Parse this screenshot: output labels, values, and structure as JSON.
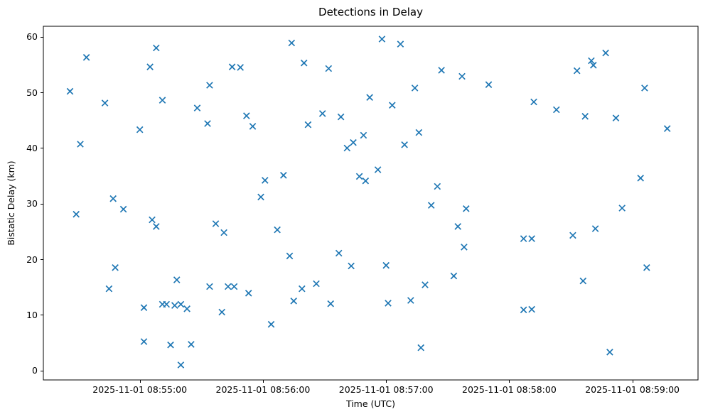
{
  "chart_data": {
    "type": "scatter",
    "title": "Detections in Delay",
    "xlabel": "Time (UTC)",
    "ylabel": "Bistatic Delay (km)",
    "marker": "x",
    "marker_color": "#1f77b4",
    "spine_color": "#000000",
    "background_color": "#ffffff",
    "grid": false,
    "legend": false,
    "xlim": [
      "2025-11-01 08:54:13",
      "2025-11-01 08:59:32"
    ],
    "ylim": [
      -1.7,
      61.9
    ],
    "xtick_labels": [
      "2025-11-01 08:55:00",
      "2025-11-01 08:56:00",
      "2025-11-01 08:57:00",
      "2025-11-01 08:58:00",
      "2025-11-01 08:59:00"
    ],
    "ytick_values": [
      0,
      10,
      20,
      30,
      40,
      50,
      60
    ],
    "points": [
      [
        "2025-11-01 08:54:26",
        50.2
      ],
      [
        "2025-11-01 08:54:29",
        28.1
      ],
      [
        "2025-11-01 08:54:31",
        40.7
      ],
      [
        "2025-11-01 08:54:34",
        56.3
      ],
      [
        "2025-11-01 08:54:43",
        48.1
      ],
      [
        "2025-11-01 08:54:45",
        14.7
      ],
      [
        "2025-11-01 08:54:47",
        30.9
      ],
      [
        "2025-11-01 08:54:48",
        18.5
      ],
      [
        "2025-11-01 08:54:52",
        29.0
      ],
      [
        "2025-11-01 08:55:00",
        43.3
      ],
      [
        "2025-11-01 08:55:02",
        11.3
      ],
      [
        "2025-11-01 08:55:02",
        5.2
      ],
      [
        "2025-11-01 08:55:05",
        54.6
      ],
      [
        "2025-11-01 08:55:06",
        27.1
      ],
      [
        "2025-11-01 08:55:08",
        58.0
      ],
      [
        "2025-11-01 08:55:08",
        25.9
      ],
      [
        "2025-11-01 08:55:11",
        48.6
      ],
      [
        "2025-11-01 08:55:11",
        11.9
      ],
      [
        "2025-11-01 08:55:13",
        11.9
      ],
      [
        "2025-11-01 08:55:15",
        4.6
      ],
      [
        "2025-11-01 08:55:17",
        11.7
      ],
      [
        "2025-11-01 08:55:18",
        16.3
      ],
      [
        "2025-11-01 08:55:20",
        11.9
      ],
      [
        "2025-11-01 08:55:20",
        1.0
      ],
      [
        "2025-11-01 08:55:23",
        11.1
      ],
      [
        "2025-11-01 08:55:25",
        4.7
      ],
      [
        "2025-11-01 08:55:28",
        47.2
      ],
      [
        "2025-11-01 08:55:33",
        44.4
      ],
      [
        "2025-11-01 08:55:34",
        51.3
      ],
      [
        "2025-11-01 08:55:34",
        15.1
      ],
      [
        "2025-11-01 08:55:37",
        26.4
      ],
      [
        "2025-11-01 08:55:40",
        10.5
      ],
      [
        "2025-11-01 08:55:41",
        24.8
      ],
      [
        "2025-11-01 08:55:43",
        15.1
      ],
      [
        "2025-11-01 08:55:45",
        54.6
      ],
      [
        "2025-11-01 08:55:46",
        15.1
      ],
      [
        "2025-11-01 08:55:49",
        54.5
      ],
      [
        "2025-11-01 08:55:52",
        45.8
      ],
      [
        "2025-11-01 08:55:53",
        13.9
      ],
      [
        "2025-11-01 08:55:55",
        43.9
      ],
      [
        "2025-11-01 08:55:59",
        31.2
      ],
      [
        "2025-11-01 08:56:01",
        34.2
      ],
      [
        "2025-11-01 08:56:04",
        8.3
      ],
      [
        "2025-11-01 08:56:07",
        25.3
      ],
      [
        "2025-11-01 08:56:10",
        35.1
      ],
      [
        "2025-11-01 08:56:13",
        20.6
      ],
      [
        "2025-11-01 08:56:14",
        58.9
      ],
      [
        "2025-11-01 08:56:15",
        12.5
      ],
      [
        "2025-11-01 08:56:19",
        14.7
      ],
      [
        "2025-11-01 08:56:20",
        55.3
      ],
      [
        "2025-11-01 08:56:22",
        44.2
      ],
      [
        "2025-11-01 08:56:26",
        15.6
      ],
      [
        "2025-11-01 08:56:29",
        46.2
      ],
      [
        "2025-11-01 08:56:32",
        54.3
      ],
      [
        "2025-11-01 08:56:33",
        12.0
      ],
      [
        "2025-11-01 08:56:37",
        21.1
      ],
      [
        "2025-11-01 08:56:38",
        45.6
      ],
      [
        "2025-11-01 08:56:41",
        40.0
      ],
      [
        "2025-11-01 08:56:43",
        18.8
      ],
      [
        "2025-11-01 08:56:44",
        41.0
      ],
      [
        "2025-11-01 08:56:47",
        34.9
      ],
      [
        "2025-11-01 08:56:49",
        42.3
      ],
      [
        "2025-11-01 08:56:50",
        34.1
      ],
      [
        "2025-11-01 08:56:52",
        49.1
      ],
      [
        "2025-11-01 08:56:56",
        36.1
      ],
      [
        "2025-11-01 08:56:58",
        59.6
      ],
      [
        "2025-11-01 08:57:00",
        18.9
      ],
      [
        "2025-11-01 08:57:01",
        12.1
      ],
      [
        "2025-11-01 08:57:03",
        47.7
      ],
      [
        "2025-11-01 08:57:07",
        58.7
      ],
      [
        "2025-11-01 08:57:09",
        40.6
      ],
      [
        "2025-11-01 08:57:12",
        12.6
      ],
      [
        "2025-11-01 08:57:14",
        50.8
      ],
      [
        "2025-11-01 08:57:16",
        42.8
      ],
      [
        "2025-11-01 08:57:17",
        4.1
      ],
      [
        "2025-11-01 08:57:19",
        15.4
      ],
      [
        "2025-11-01 08:57:22",
        29.7
      ],
      [
        "2025-11-01 08:57:25",
        33.1
      ],
      [
        "2025-11-01 08:57:27",
        54.0
      ],
      [
        "2025-11-01 08:57:33",
        17.0
      ],
      [
        "2025-11-01 08:57:35",
        25.9
      ],
      [
        "2025-11-01 08:57:37",
        52.9
      ],
      [
        "2025-11-01 08:57:38",
        22.2
      ],
      [
        "2025-11-01 08:57:39",
        29.1
      ],
      [
        "2025-11-01 08:57:50",
        51.4
      ],
      [
        "2025-11-01 08:58:07",
        23.7
      ],
      [
        "2025-11-01 08:58:07",
        10.9
      ],
      [
        "2025-11-01 08:58:11",
        23.7
      ],
      [
        "2025-11-01 08:58:11",
        11.0
      ],
      [
        "2025-11-01 08:58:12",
        48.3
      ],
      [
        "2025-11-01 08:58:23",
        46.9
      ],
      [
        "2025-11-01 08:58:31",
        24.3
      ],
      [
        "2025-11-01 08:58:33",
        53.9
      ],
      [
        "2025-11-01 08:58:36",
        16.1
      ],
      [
        "2025-11-01 08:58:37",
        45.7
      ],
      [
        "2025-11-01 08:58:40",
        55.7
      ],
      [
        "2025-11-01 08:58:41",
        54.9
      ],
      [
        "2025-11-01 08:58:42",
        25.5
      ],
      [
        "2025-11-01 08:58:47",
        57.1
      ],
      [
        "2025-11-01 08:58:49",
        3.3
      ],
      [
        "2025-11-01 08:58:52",
        45.4
      ],
      [
        "2025-11-01 08:58:55",
        29.2
      ],
      [
        "2025-11-01 08:59:04",
        34.6
      ],
      [
        "2025-11-01 08:59:06",
        50.8
      ],
      [
        "2025-11-01 08:59:07",
        18.5
      ],
      [
        "2025-11-01 08:59:17",
        43.5
      ]
    ]
  }
}
